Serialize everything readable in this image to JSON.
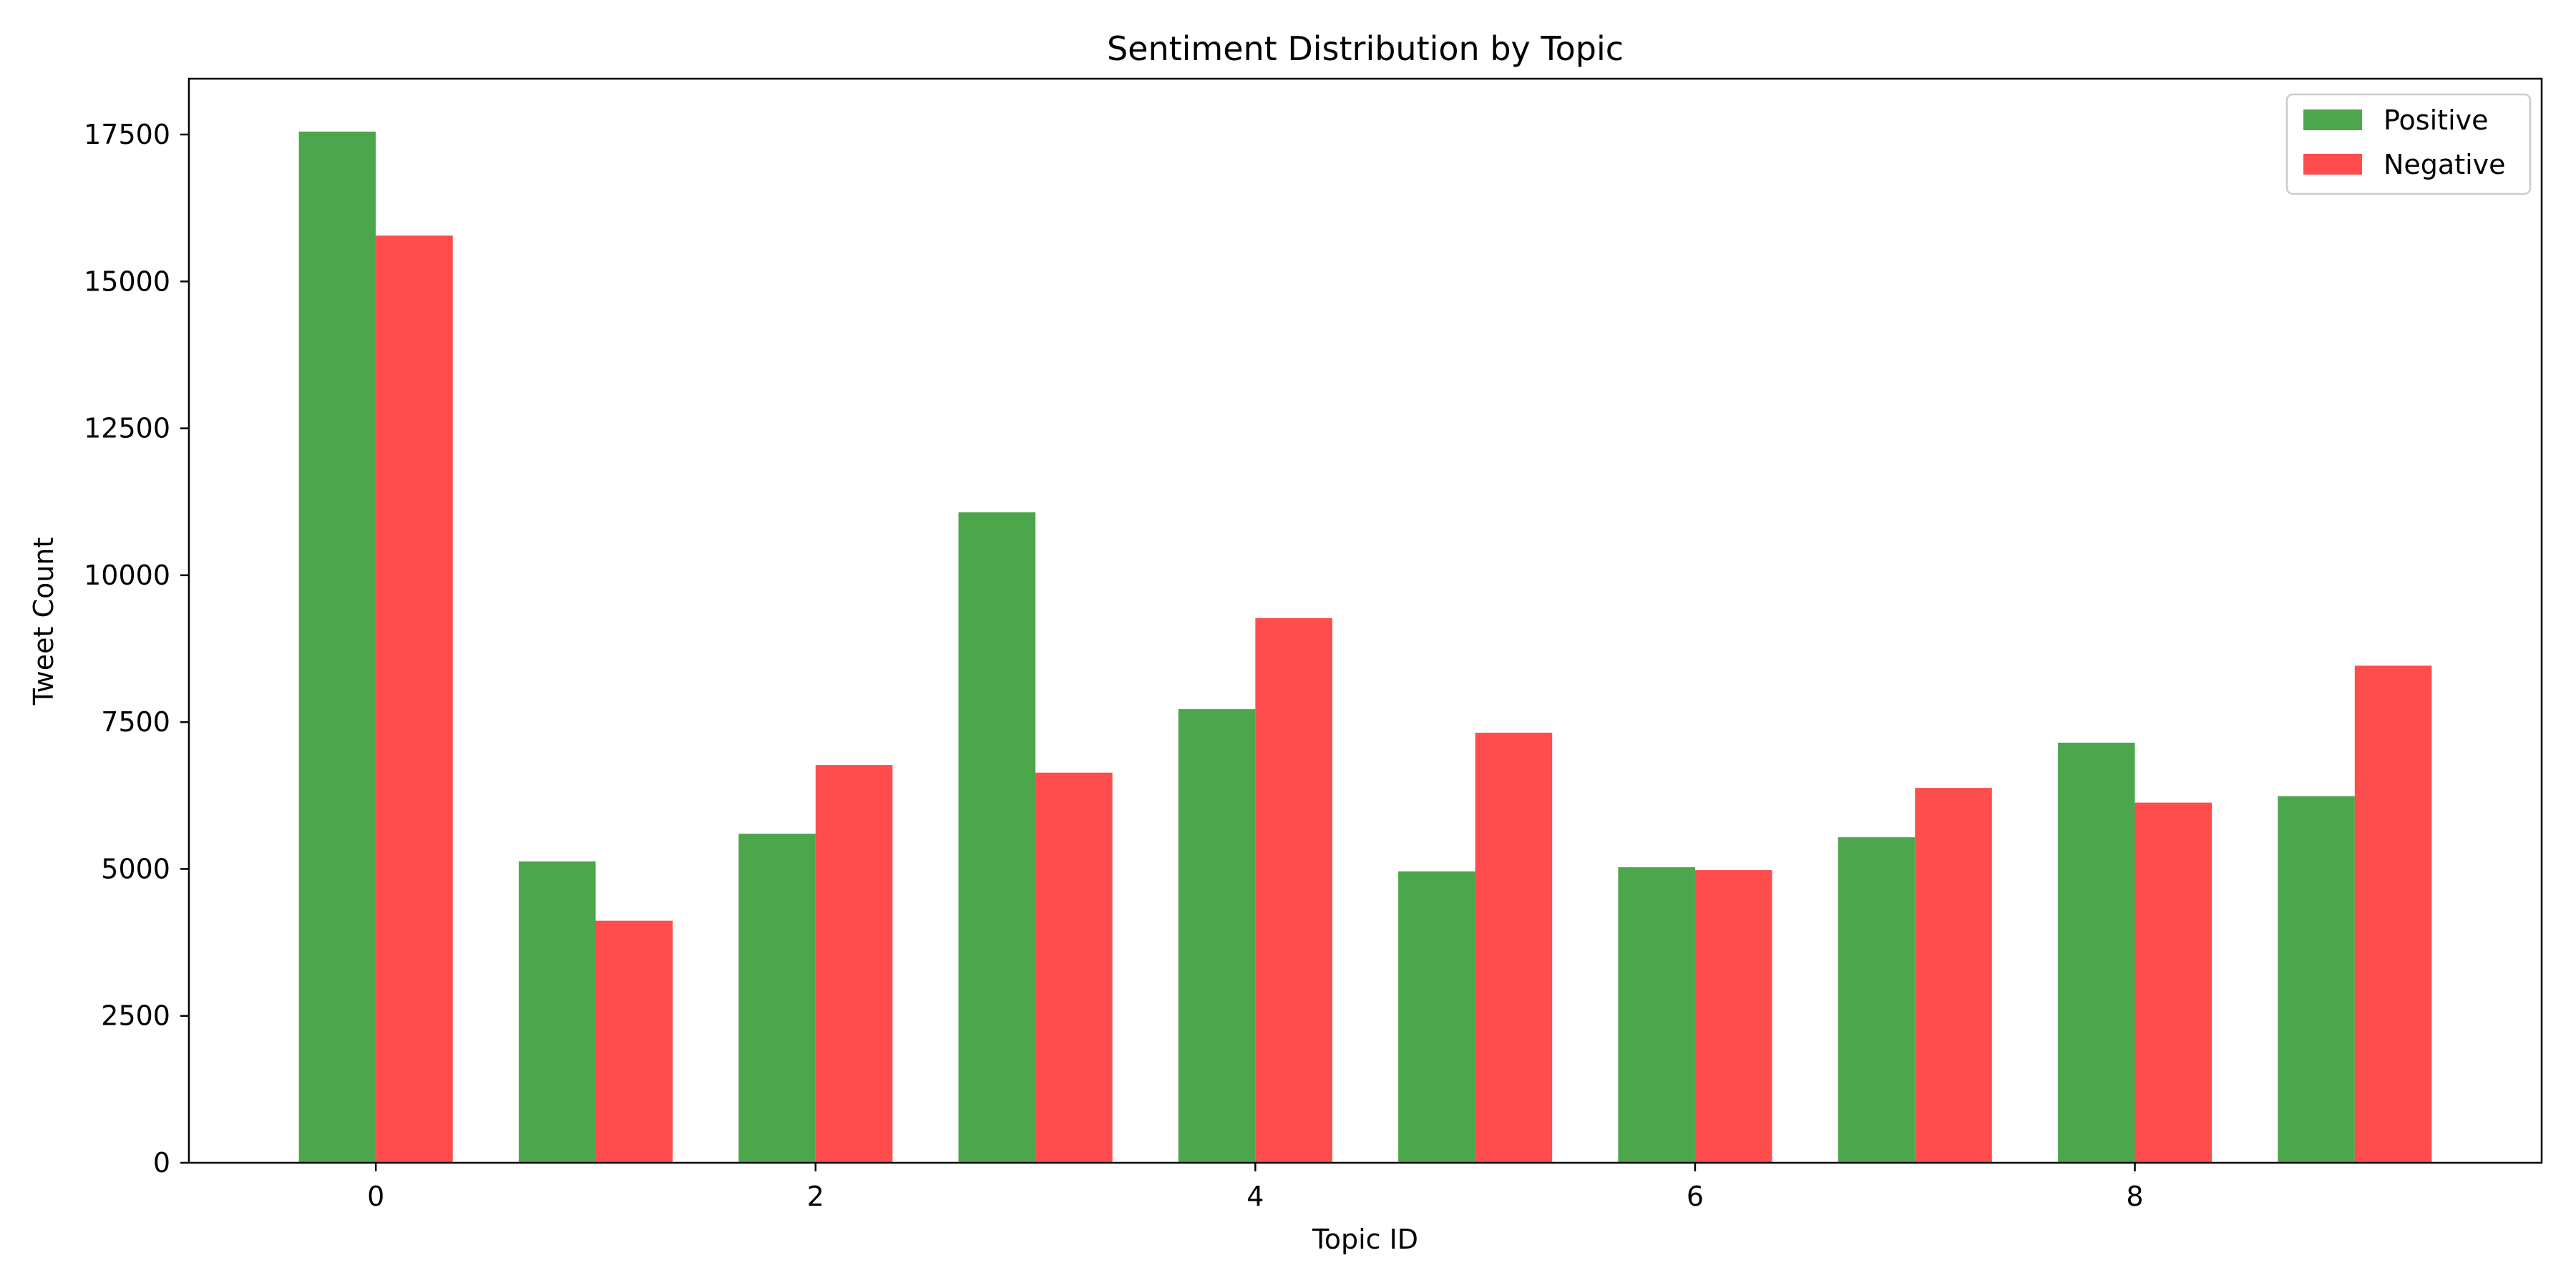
{
  "chart_data": {
    "type": "bar",
    "title": "Sentiment Distribution by Topic",
    "xlabel": "Topic ID",
    "ylabel": "Tweet Count",
    "categories": [
      0,
      1,
      2,
      3,
      4,
      5,
      6,
      7,
      8,
      9
    ],
    "x_ticks": [
      0,
      2,
      4,
      6,
      8
    ],
    "x_tick_labels": [
      "0",
      "2",
      "4",
      "6",
      "8"
    ],
    "y_ticks": [
      0,
      2500,
      5000,
      7500,
      10000,
      12500,
      15000,
      17500
    ],
    "y_tick_labels": [
      "0",
      "2500",
      "5000",
      "7500",
      "10000",
      "12500",
      "15000",
      "17500"
    ],
    "xlim": [
      -0.85,
      9.85
    ],
    "ylim": [
      0,
      18450
    ],
    "grid": false,
    "legend_position": "top-right",
    "series": [
      {
        "name": "Positive",
        "color": "#4ca64c",
        "values": [
          17550,
          5130,
          5600,
          11070,
          7720,
          4960,
          5030,
          5540,
          7150,
          6240
        ]
      },
      {
        "name": "Negative",
        "color": "#ff4c4c",
        "values": [
          15780,
          4120,
          6770,
          6640,
          9270,
          7320,
          4980,
          6380,
          6130,
          8460
        ]
      }
    ]
  }
}
